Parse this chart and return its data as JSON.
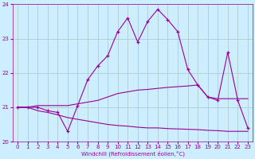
{
  "xlabel": "Windchill (Refroidissement éolien,°C)",
  "background_color": "#cceeff",
  "grid_color": "#aaddcc",
  "line_color": "#990099",
  "xlim": [
    -0.5,
    23.5
  ],
  "ylim": [
    20,
    24
  ],
  "yticks": [
    20,
    21,
    22,
    23,
    24
  ],
  "xticks": [
    0,
    1,
    2,
    3,
    4,
    5,
    6,
    7,
    8,
    9,
    10,
    11,
    12,
    13,
    14,
    15,
    16,
    17,
    18,
    19,
    20,
    21,
    22,
    23
  ],
  "windchill_x": [
    0,
    1,
    2,
    3,
    4,
    5,
    6,
    7,
    8,
    9,
    10,
    11,
    12,
    13,
    14,
    15,
    16,
    17,
    18,
    19,
    20,
    21,
    22,
    23
  ],
  "windchill_y": [
    21.0,
    21.0,
    21.0,
    20.9,
    20.85,
    20.3,
    21.05,
    21.8,
    22.2,
    22.5,
    23.2,
    23.6,
    22.9,
    23.5,
    23.85,
    23.55,
    23.2,
    22.1,
    21.65,
    21.3,
    21.2,
    22.6,
    21.2,
    20.4
  ],
  "temp_x": [
    0,
    1,
    2,
    3,
    4,
    5,
    6,
    7,
    8,
    9,
    10,
    11,
    12,
    13,
    14,
    15,
    16,
    17,
    18,
    19,
    20,
    21,
    22,
    23
  ],
  "temp_y": [
    21.0,
    21.0,
    21.05,
    21.05,
    21.05,
    21.05,
    21.1,
    21.15,
    21.2,
    21.3,
    21.4,
    21.45,
    21.5,
    21.52,
    21.55,
    21.58,
    21.6,
    21.62,
    21.65,
    21.3,
    21.25,
    21.25,
    21.25,
    21.25
  ],
  "dewpoint_x": [
    0,
    1,
    2,
    3,
    4,
    5,
    6,
    7,
    8,
    9,
    10,
    11,
    12,
    13,
    14,
    15,
    16,
    17,
    18,
    19,
    20,
    21,
    22,
    23
  ],
  "dewpoint_y": [
    21.0,
    21.0,
    20.9,
    20.85,
    20.78,
    20.7,
    20.65,
    20.6,
    20.55,
    20.5,
    20.47,
    20.45,
    20.42,
    20.4,
    20.4,
    20.38,
    20.37,
    20.36,
    20.35,
    20.33,
    20.32,
    20.3,
    20.3,
    20.3
  ]
}
